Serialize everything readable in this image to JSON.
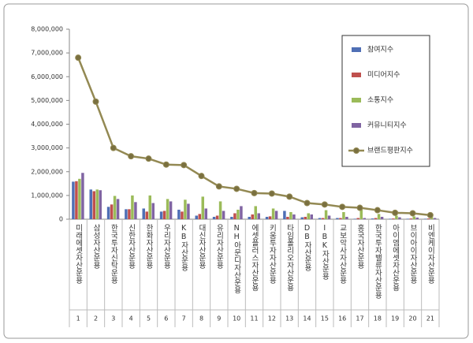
{
  "chart_data": {
    "type": "bar",
    "categories": [
      "미래에셋자산운용",
      "삼성자산운용",
      "한국투자신탁운용",
      "신한자산운용",
      "한화자산운용",
      "우리자산운용",
      "KB자산운용",
      "대신자산운용",
      "유리자산운용",
      "NH아문디자산운용",
      "에셋플러스자산운용",
      "키움투자자산운용",
      "타임폴리오자산운용",
      "DB자산운용",
      "IBK자산운용",
      "교보악사자산운용",
      "흥국자산운용",
      "한국투자밸류자산운용",
      "아이엠에셋자산운용",
      "브이아이자산운용",
      "비엔케이자산운용"
    ],
    "category_numbers": [
      1,
      2,
      3,
      4,
      5,
      6,
      7,
      8,
      9,
      10,
      11,
      12,
      13,
      14,
      15,
      16,
      17,
      18,
      19,
      20,
      21
    ],
    "series": [
      {
        "name": "참여지수",
        "color": "#4f6fb5",
        "values": [
          1580000,
          1250000,
          520000,
          420000,
          450000,
          320000,
          400000,
          150000,
          100000,
          100000,
          100000,
          100000,
          350000,
          80000,
          50000,
          50000,
          20000,
          30000,
          20000,
          20000,
          20000
        ]
      },
      {
        "name": "미디어지수",
        "color": "#c0504d",
        "values": [
          1600000,
          1180000,
          620000,
          420000,
          320000,
          350000,
          320000,
          220000,
          150000,
          250000,
          200000,
          120000,
          100000,
          100000,
          50000,
          50000,
          50000,
          50000,
          30000,
          30000,
          30000
        ]
      },
      {
        "name": "소통지수",
        "color": "#9bbb59",
        "values": [
          1700000,
          1250000,
          980000,
          1000000,
          1000000,
          850000,
          820000,
          950000,
          750000,
          400000,
          550000,
          450000,
          300000,
          250000,
          380000,
          300000,
          450000,
          220000,
          150000,
          120000,
          80000
        ]
      },
      {
        "name": "커뮤니티지수",
        "color": "#8064a2",
        "values": [
          1950000,
          1220000,
          850000,
          720000,
          680000,
          750000,
          650000,
          450000,
          350000,
          550000,
          250000,
          350000,
          200000,
          200000,
          150000,
          100000,
          50000,
          100000,
          80000,
          70000,
          50000
        ]
      },
      {
        "name": "브랜드평판지수",
        "color": "#938953",
        "type": "line",
        "values": [
          6800000,
          4950000,
          3000000,
          2650000,
          2550000,
          2300000,
          2280000,
          1820000,
          1380000,
          1280000,
          1100000,
          1080000,
          950000,
          680000,
          620000,
          520000,
          480000,
          380000,
          270000,
          250000,
          170000
        ]
      }
    ],
    "ylim": [
      0,
      8000000
    ],
    "yticks": [
      0,
      {
        "value": 1000000,
        "label": "1,000,000"
      },
      {
        "value": 2000000,
        "label": "2,000,000"
      },
      {
        "value": 3000000,
        "label": "3,000,000"
      },
      {
        "value": 4000000,
        "label": "4,000,000"
      },
      {
        "value": 5000000,
        "label": "5,000,000"
      },
      {
        "value": 6000000,
        "label": "6,000,000"
      },
      {
        "value": 7000000,
        "label": "7,000,000"
      },
      {
        "value": 8000000,
        "label": "8,000,000"
      }
    ],
    "legend_position": "top-right"
  }
}
